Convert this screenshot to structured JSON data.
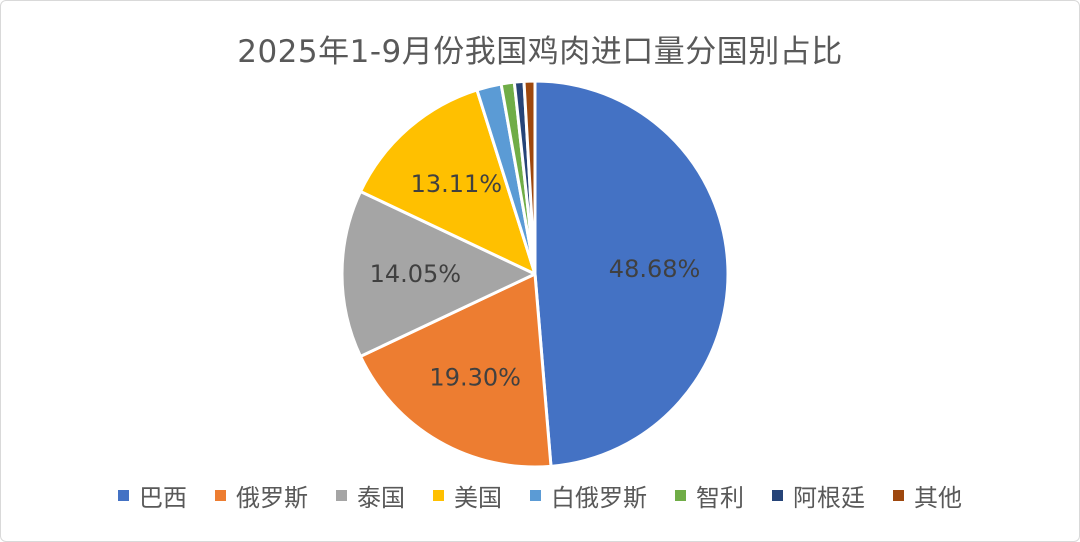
{
  "chart_data": {
    "type": "pie",
    "title": "2025年1-9月份我国鸡肉进口量分国别占比",
    "categories": [
      "巴西",
      "俄罗斯",
      "泰国",
      "美国",
      "白俄罗斯",
      "智利",
      "阿根廷",
      "其他"
    ],
    "values": [
      48.68,
      19.3,
      14.05,
      13.11,
      2.05,
      1.1,
      0.8,
      0.91
    ],
    "data_labels": [
      "48.68%",
      "19.30%",
      "14.05%",
      "13.11%",
      "",
      "",
      "",
      ""
    ],
    "colors": [
      "#4472C4",
      "#ED7D31",
      "#A5A5A5",
      "#FFC000",
      "#5B9BD5",
      "#70AD47",
      "#264478",
      "#9E480E"
    ],
    "start_angle": "12 o'clock",
    "direction": "clockwise",
    "legend_position": "bottom"
  }
}
